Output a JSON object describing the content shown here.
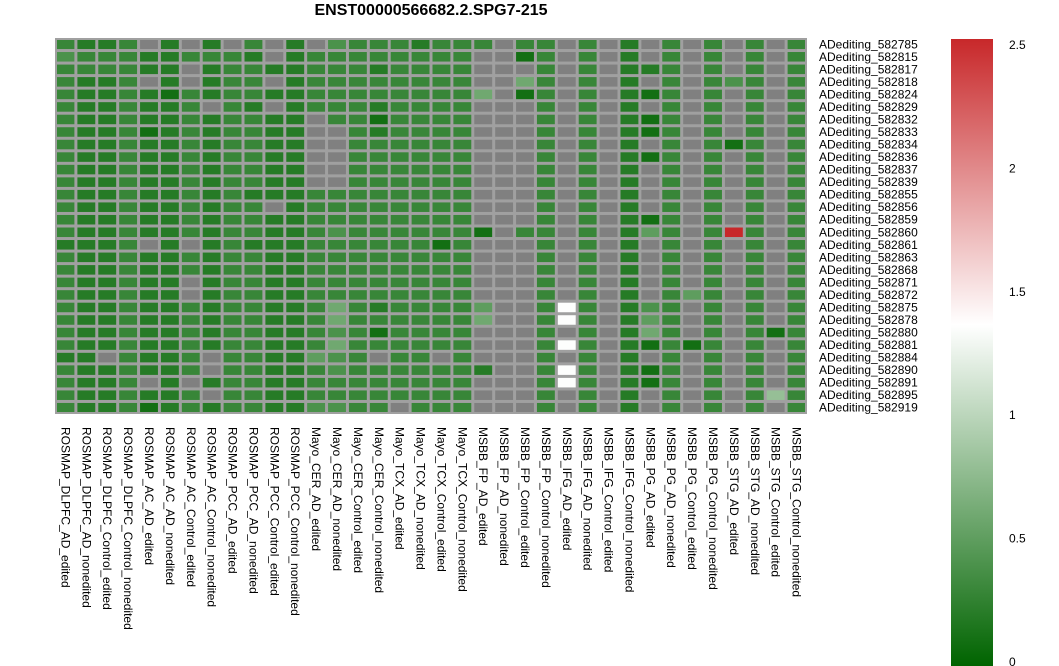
{
  "chart_data": {
    "type": "heatmap",
    "title": "ENST00000566682.2.SPG7-215",
    "columns": [
      "ROSMAP_DLPFC_AD_edited",
      "ROSMAP_DLPFC_AD_nonedited",
      "ROSMAP_DLPFC_Control_edited",
      "ROSMAP_DLPFC_Control_nonedited",
      "ROSMAP_AC_AD_edited",
      "ROSMAP_AC_AD_nonedited",
      "ROSMAP_AC_Control_edited",
      "ROSMAP_AC_Control_nonedited",
      "ROSMAP_PCC_AD_edited",
      "ROSMAP_PCC_AD_nonedited",
      "ROSMAP_PCC_Control_edited",
      "ROSMAP_PCC_Control_nonedited",
      "Mayo_CER_AD_edited",
      "Mayo_CER_AD_nonedited",
      "Mayo_CER_Control_edited",
      "Mayo_CER_Control_nonedited",
      "Mayo_TCX_AD_edited",
      "Mayo_TCX_AD_nonedited",
      "Mayo_TCX_Control_edited",
      "Mayo_TCX_Control_nonedited",
      "MSBB_FP_AD_edited",
      "MSBB_FP_AD_nonedited",
      "MSBB_FP_Control_edited",
      "MSBB_FP_Control_nonedited",
      "MSBB_IFG_AD_edited",
      "MSBB_IFG_AD_nonedited",
      "MSBB_IFG_Control_edited",
      "MSBB_IFG_Control_nonedited",
      "MSBB_PG_AD_edited",
      "MSBB_PG_AD_nonedited",
      "MSBB_PG_Control_edited",
      "MSBB_PG_Control_nonedited",
      "MSBB_STG_AD_edited",
      "MSBB_STG_AD_nonedited",
      "MSBB_STG_Control_edited",
      "MSBB_STG_Control_nonedited"
    ],
    "rows": [
      "ADediting_582785",
      "ADediting_582815",
      "ADediting_582817",
      "ADediting_582818",
      "ADediting_582824",
      "ADediting_582829",
      "ADediting_582832",
      "ADediting_582833",
      "ADediting_582834",
      "ADediting_582836",
      "ADediting_582837",
      "ADediting_582839",
      "ADediting_582855",
      "ADediting_582856",
      "ADediting_582859",
      "ADediting_582860",
      "ADediting_582861",
      "ADediting_582863",
      "ADediting_582868",
      "ADediting_582871",
      "ADediting_582872",
      "ADediting_582875",
      "ADediting_582878",
      "ADediting_582880",
      "ADediting_582881",
      "ADediting_582884",
      "ADediting_582890",
      "ADediting_582891",
      "ADediting_582895",
      "ADediting_582919"
    ],
    "values": [
      [
        0.3,
        0.2,
        0.2,
        0.3,
        null,
        0.2,
        null,
        0.2,
        null,
        0.3,
        null,
        0.2,
        null,
        0.4,
        0.3,
        0.3,
        0.3,
        0.2,
        0.3,
        0.3,
        0.3,
        null,
        0.3,
        0.3,
        null,
        0.3,
        null,
        0.2,
        null,
        0.3,
        null,
        0.3,
        null,
        0.3,
        null,
        0.3
      ],
      [
        0.4,
        0.3,
        0.3,
        0.3,
        0.2,
        0.2,
        0.3,
        0.3,
        0.3,
        0.2,
        null,
        0.2,
        0.3,
        0.3,
        0.3,
        0.3,
        0.3,
        0.3,
        0.3,
        0.3,
        null,
        null,
        0.1,
        0.3,
        null,
        0.3,
        null,
        0.2,
        null,
        0.3,
        null,
        0.3,
        null,
        0.3,
        null,
        0.3
      ],
      [
        0.3,
        0.3,
        0.3,
        0.3,
        0.2,
        0.2,
        null,
        0.2,
        0.3,
        0.3,
        0.2,
        0.2,
        0.3,
        0.3,
        0.3,
        0.2,
        0.3,
        0.3,
        0.3,
        0.3,
        null,
        null,
        null,
        0.3,
        null,
        0.3,
        null,
        0.2,
        0.2,
        0.3,
        null,
        0.3,
        null,
        0.3,
        null,
        0.3
      ],
      [
        0.3,
        0.2,
        0.2,
        0.3,
        null,
        0.2,
        null,
        0.2,
        0.3,
        0.3,
        null,
        0.2,
        0.3,
        0.3,
        0.3,
        0.3,
        0.3,
        0.3,
        0.3,
        0.3,
        null,
        null,
        0.6,
        0.3,
        null,
        0.3,
        null,
        0.2,
        null,
        0.3,
        null,
        0.3,
        0.4,
        0.3,
        null,
        0.3
      ],
      [
        0.3,
        0.2,
        0.2,
        0.3,
        0.2,
        0.1,
        0.3,
        0.2,
        0.3,
        0.3,
        0.2,
        0.2,
        0.3,
        0.3,
        0.3,
        0.3,
        0.3,
        0.3,
        0.3,
        0.3,
        0.6,
        null,
        0.1,
        0.3,
        null,
        0.3,
        null,
        0.2,
        0.1,
        0.3,
        null,
        0.3,
        null,
        0.3,
        null,
        0.3
      ],
      [
        0.3,
        0.2,
        0.2,
        0.3,
        0.2,
        0.2,
        0.3,
        null,
        0.3,
        0.2,
        null,
        0.2,
        0.3,
        0.3,
        0.3,
        0.2,
        0.3,
        0.3,
        0.3,
        0.3,
        null,
        null,
        null,
        0.3,
        null,
        0.3,
        null,
        0.2,
        null,
        0.3,
        null,
        0.3,
        null,
        0.3,
        null,
        0.3
      ],
      [
        0.3,
        0.2,
        0.2,
        0.3,
        0.2,
        0.2,
        0.3,
        0.2,
        0.3,
        0.3,
        0.2,
        0.2,
        null,
        0.3,
        0.3,
        0.1,
        0.3,
        0.3,
        0.3,
        0.3,
        null,
        null,
        null,
        0.3,
        null,
        0.3,
        null,
        0.2,
        0.1,
        0.3,
        null,
        0.3,
        null,
        0.3,
        null,
        0.3
      ],
      [
        0.3,
        0.2,
        0.2,
        0.3,
        0.1,
        0.2,
        0.3,
        0.2,
        0.3,
        0.3,
        0.2,
        0.2,
        null,
        null,
        0.3,
        0.2,
        0.3,
        0.3,
        0.3,
        0.3,
        null,
        null,
        null,
        0.3,
        null,
        0.3,
        null,
        0.2,
        0.1,
        0.3,
        null,
        0.3,
        null,
        0.3,
        null,
        0.3
      ],
      [
        0.3,
        0.2,
        0.2,
        0.3,
        0.2,
        0.2,
        0.3,
        0.2,
        0.3,
        0.3,
        0.2,
        0.2,
        null,
        null,
        0.3,
        0.3,
        0.3,
        0.3,
        0.3,
        0.3,
        null,
        null,
        null,
        0.3,
        null,
        0.3,
        null,
        0.2,
        null,
        0.3,
        null,
        0.3,
        0.1,
        0.3,
        null,
        0.3
      ],
      [
        0.3,
        0.2,
        0.2,
        0.3,
        0.2,
        0.2,
        0.3,
        0.2,
        0.3,
        0.3,
        0.2,
        0.2,
        null,
        null,
        0.3,
        0.3,
        0.3,
        0.3,
        0.3,
        0.3,
        null,
        null,
        null,
        0.3,
        null,
        0.3,
        null,
        0.2,
        0.1,
        0.3,
        null,
        0.3,
        null,
        0.3,
        null,
        0.3
      ],
      [
        0.3,
        0.2,
        0.2,
        0.3,
        0.2,
        0.2,
        0.3,
        0.2,
        0.3,
        0.3,
        0.2,
        0.2,
        null,
        null,
        0.3,
        0.3,
        0.3,
        0.3,
        0.3,
        0.3,
        null,
        null,
        null,
        0.3,
        null,
        0.3,
        null,
        0.2,
        null,
        0.3,
        null,
        0.3,
        null,
        0.3,
        null,
        0.3
      ],
      [
        0.3,
        0.2,
        0.2,
        0.3,
        0.2,
        0.2,
        0.3,
        0.2,
        0.3,
        0.3,
        0.2,
        0.2,
        null,
        null,
        0.3,
        0.3,
        0.3,
        0.3,
        0.3,
        0.3,
        null,
        null,
        null,
        0.3,
        null,
        0.3,
        null,
        0.2,
        null,
        0.3,
        null,
        0.3,
        null,
        0.3,
        null,
        0.3
      ],
      [
        0.3,
        0.2,
        0.2,
        0.3,
        0.2,
        0.2,
        0.3,
        0.2,
        0.3,
        0.2,
        0.2,
        0.2,
        0.3,
        0.3,
        0.3,
        0.3,
        0.3,
        0.3,
        0.3,
        0.3,
        null,
        null,
        null,
        0.3,
        null,
        0.3,
        null,
        0.2,
        null,
        0.3,
        null,
        0.3,
        null,
        0.3,
        null,
        0.3
      ],
      [
        0.3,
        0.2,
        0.2,
        0.3,
        0.2,
        0.2,
        0.3,
        0.2,
        0.3,
        0.3,
        null,
        0.2,
        0.3,
        0.3,
        0.3,
        0.3,
        0.3,
        0.3,
        0.3,
        0.3,
        null,
        null,
        null,
        0.3,
        null,
        0.3,
        null,
        0.2,
        null,
        0.3,
        null,
        0.3,
        null,
        0.3,
        null,
        0.3
      ],
      [
        0.3,
        0.2,
        0.2,
        0.3,
        0.2,
        0.2,
        0.3,
        0.2,
        0.3,
        0.3,
        0.2,
        0.2,
        0.3,
        0.3,
        0.3,
        0.3,
        0.3,
        0.3,
        0.3,
        0.3,
        null,
        null,
        null,
        0.3,
        null,
        0.3,
        null,
        0.2,
        0.1,
        0.3,
        null,
        0.3,
        null,
        0.3,
        null,
        0.3
      ],
      [
        0.3,
        0.2,
        0.2,
        0.3,
        0.2,
        0.2,
        0.3,
        0.2,
        0.3,
        0.3,
        0.2,
        0.2,
        0.3,
        0.4,
        0.3,
        0.3,
        0.3,
        0.3,
        0.3,
        0.3,
        0.1,
        null,
        0.3,
        0.3,
        null,
        0.3,
        null,
        0.2,
        0.5,
        0.3,
        null,
        0.3,
        2.5,
        0.3,
        null,
        0.3
      ],
      [
        0.2,
        0.2,
        0.2,
        0.3,
        null,
        0.2,
        null,
        0.2,
        0.3,
        0.2,
        0.2,
        0.2,
        0.3,
        0.3,
        0.3,
        0.3,
        0.3,
        0.3,
        0.1,
        0.3,
        null,
        null,
        null,
        0.3,
        null,
        0.3,
        null,
        0.2,
        null,
        0.3,
        null,
        0.3,
        null,
        0.3,
        null,
        0.3
      ],
      [
        0.3,
        0.2,
        0.2,
        0.3,
        0.2,
        0.2,
        0.3,
        0.2,
        0.3,
        0.3,
        0.2,
        0.2,
        0.3,
        0.3,
        0.3,
        0.3,
        0.3,
        0.3,
        0.3,
        0.3,
        null,
        null,
        null,
        0.3,
        null,
        0.3,
        null,
        0.2,
        null,
        0.3,
        null,
        0.3,
        null,
        0.3,
        null,
        0.3
      ],
      [
        0.3,
        0.2,
        0.2,
        0.3,
        0.2,
        0.2,
        0.3,
        0.2,
        0.3,
        0.3,
        0.2,
        0.2,
        0.3,
        0.3,
        0.3,
        0.3,
        0.3,
        0.3,
        0.3,
        0.3,
        null,
        null,
        null,
        0.3,
        null,
        0.3,
        null,
        0.2,
        null,
        0.3,
        null,
        0.3,
        null,
        0.3,
        null,
        0.3
      ],
      [
        0.3,
        0.2,
        0.2,
        0.3,
        0.2,
        0.2,
        null,
        0.2,
        0.3,
        0.3,
        0.2,
        0.2,
        0.3,
        0.3,
        0.3,
        0.3,
        0.3,
        0.3,
        0.3,
        0.3,
        null,
        null,
        null,
        0.3,
        null,
        0.3,
        null,
        0.2,
        null,
        0.3,
        null,
        0.3,
        null,
        0.3,
        null,
        0.3
      ],
      [
        0.3,
        0.2,
        0.2,
        0.3,
        0.2,
        0.2,
        null,
        0.2,
        0.3,
        0.3,
        0.2,
        0.2,
        0.3,
        0.3,
        0.3,
        0.3,
        0.3,
        0.3,
        0.3,
        0.3,
        null,
        null,
        null,
        0.3,
        null,
        0.3,
        null,
        0.2,
        null,
        0.3,
        0.5,
        0.3,
        null,
        0.3,
        null,
        0.3
      ],
      [
        0.3,
        0.2,
        0.2,
        0.3,
        0.2,
        0.2,
        0.3,
        0.2,
        0.3,
        0.3,
        0.2,
        0.2,
        0.3,
        0.6,
        0.3,
        0.2,
        0.3,
        0.3,
        0.3,
        0.3,
        0.5,
        null,
        null,
        0.3,
        1.35,
        0.3,
        null,
        0.2,
        0.4,
        0.3,
        null,
        0.3,
        null,
        0.3,
        null,
        0.3
      ],
      [
        0.3,
        0.2,
        0.2,
        0.3,
        0.2,
        0.2,
        0.3,
        0.2,
        0.3,
        0.3,
        0.2,
        0.2,
        0.3,
        0.6,
        0.3,
        0.3,
        0.3,
        0.3,
        0.3,
        0.3,
        0.6,
        null,
        null,
        0.3,
        1.35,
        0.3,
        null,
        0.2,
        0.5,
        0.3,
        null,
        0.3,
        null,
        0.3,
        null,
        0.3
      ],
      [
        0.3,
        0.2,
        0.2,
        0.3,
        0.2,
        0.2,
        0.3,
        0.2,
        0.3,
        0.3,
        0.2,
        0.2,
        0.3,
        0.4,
        0.3,
        0.1,
        0.3,
        0.3,
        0.3,
        0.3,
        null,
        null,
        null,
        0.3,
        null,
        0.3,
        null,
        0.2,
        0.6,
        0.3,
        null,
        0.3,
        null,
        0.3,
        0.1,
        0.3
      ],
      [
        0.3,
        0.2,
        0.2,
        0.3,
        0.2,
        0.2,
        0.3,
        0.2,
        0.3,
        0.3,
        0.2,
        0.2,
        0.3,
        0.6,
        0.3,
        0.3,
        0.3,
        0.3,
        0.3,
        0.3,
        null,
        null,
        null,
        0.3,
        1.35,
        0.3,
        null,
        0.2,
        0.1,
        0.3,
        0.1,
        0.3,
        null,
        0.3,
        null,
        0.3
      ],
      [
        0.2,
        0.2,
        null,
        0.3,
        0.2,
        0.2,
        0.3,
        null,
        0.3,
        0.3,
        0.2,
        0.2,
        0.5,
        0.4,
        0.3,
        null,
        0.3,
        0.3,
        null,
        0.3,
        null,
        null,
        null,
        0.3,
        null,
        0.3,
        null,
        0.2,
        null,
        0.3,
        null,
        0.3,
        null,
        0.3,
        null,
        0.3
      ],
      [
        0.3,
        0.2,
        0.2,
        0.3,
        0.2,
        0.2,
        0.3,
        null,
        0.3,
        0.3,
        0.2,
        0.2,
        0.3,
        0.4,
        0.3,
        0.3,
        0.3,
        0.3,
        0.3,
        0.3,
        0.2,
        null,
        null,
        0.3,
        1.35,
        0.3,
        null,
        0.2,
        0.1,
        0.3,
        null,
        0.3,
        null,
        0.3,
        null,
        0.3
      ],
      [
        0.3,
        0.2,
        0.2,
        0.3,
        null,
        0.2,
        null,
        0.2,
        0.3,
        0.3,
        0.2,
        0.2,
        0.3,
        0.3,
        0.3,
        0.3,
        0.3,
        0.3,
        0.3,
        0.3,
        null,
        null,
        null,
        0.3,
        1.35,
        0.3,
        null,
        0.2,
        0.1,
        0.3,
        null,
        0.3,
        null,
        0.3,
        null,
        0.3
      ],
      [
        0.3,
        0.2,
        0.2,
        0.3,
        0.2,
        0.2,
        0.3,
        null,
        0.3,
        0.3,
        0.2,
        0.2,
        0.3,
        0.3,
        0.3,
        0.3,
        0.3,
        0.3,
        0.3,
        0.3,
        null,
        null,
        null,
        0.3,
        null,
        0.3,
        null,
        0.2,
        null,
        0.3,
        null,
        0.3,
        null,
        0.3,
        0.8,
        0.3
      ],
      [
        0.3,
        0.2,
        0.2,
        0.3,
        0.1,
        0.2,
        0.3,
        0.2,
        0.3,
        0.3,
        0.2,
        0.2,
        0.4,
        0.4,
        0.3,
        0.3,
        null,
        0.3,
        0.3,
        0.3,
        null,
        null,
        null,
        0.3,
        null,
        0.3,
        null,
        0.2,
        null,
        0.3,
        null,
        0.3,
        null,
        0.3,
        null,
        0.3
      ]
    ],
    "color_scale": {
      "min": 0,
      "max": 2.5,
      "ticks": [
        "0",
        "0.5",
        "1",
        "1.5",
        "2",
        "2.5"
      ],
      "stops": [
        {
          "value": 0,
          "color": "#006400"
        },
        {
          "value": 1.36,
          "color": "#ffffff"
        },
        {
          "value": 2.5,
          "color": "#c8282a"
        }
      ],
      "missing_color": "#808080"
    },
    "grid_color": "#a0a0a0"
  }
}
